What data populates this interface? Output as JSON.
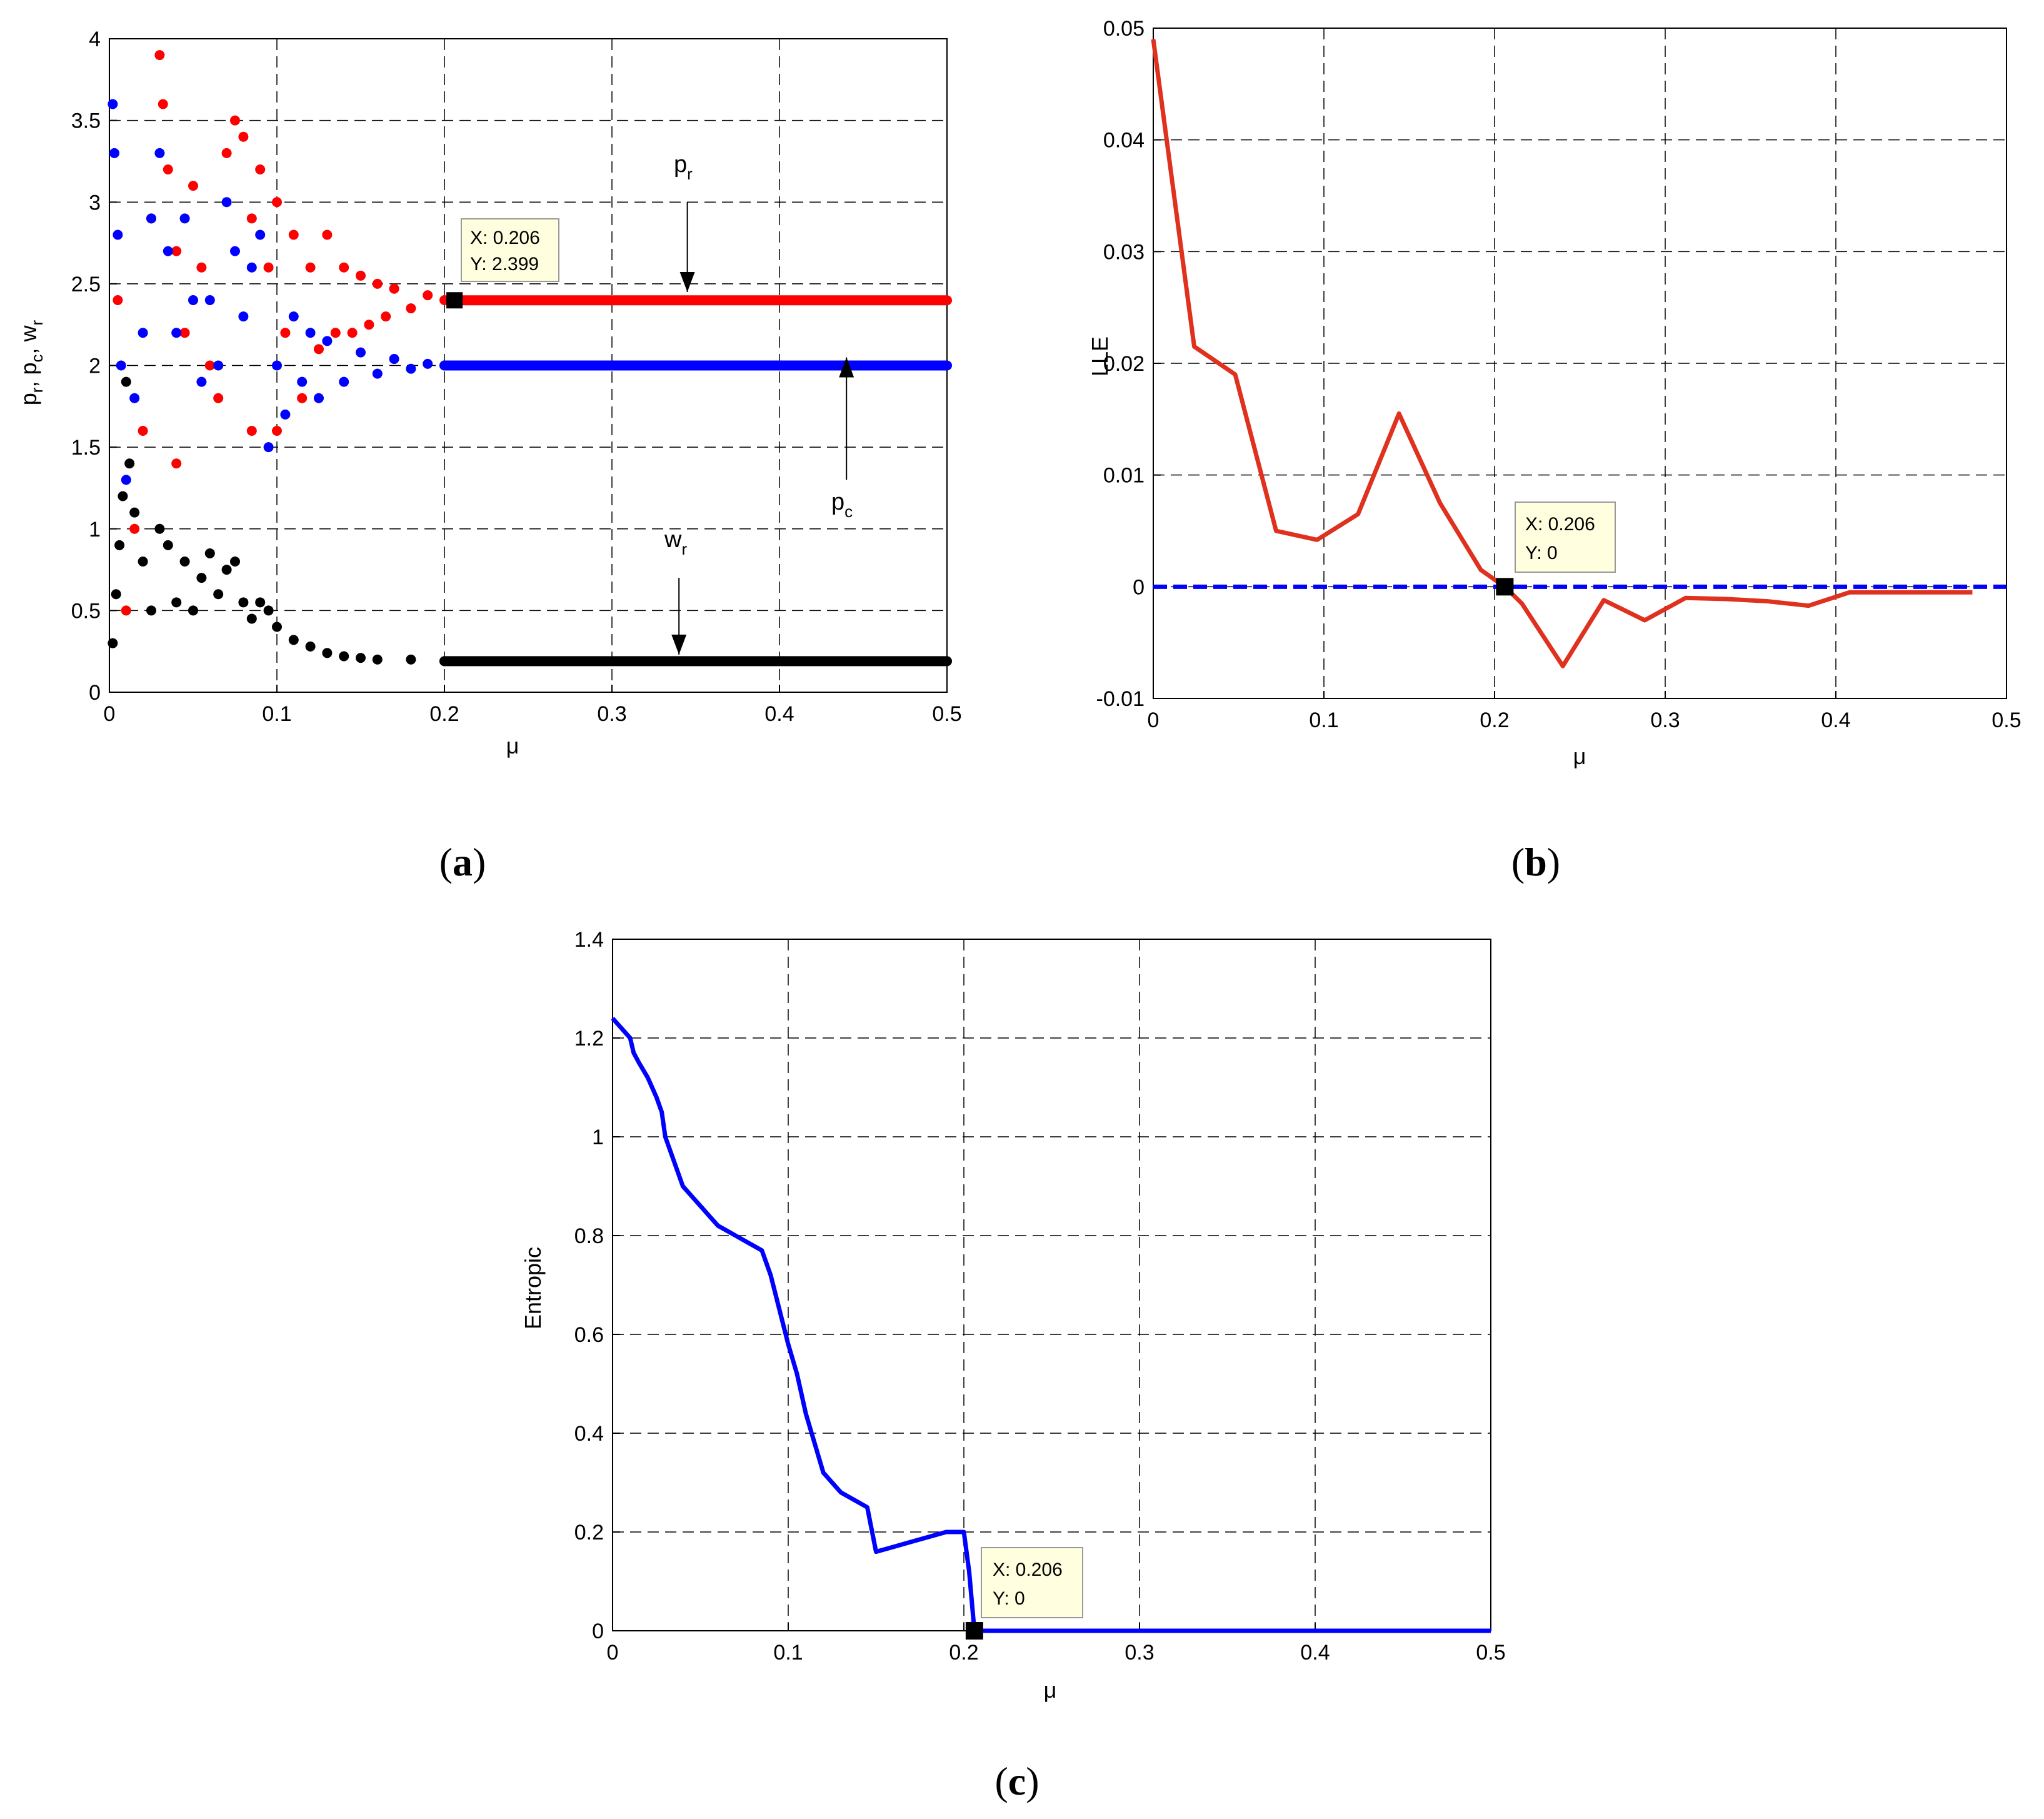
{
  "chart_data": [
    {
      "id": "a",
      "type": "scatter",
      "caption": "(a)",
      "caption_letter": "a",
      "xlabel": "μ",
      "ylabel": "p_r, p_c, w_r",
      "ylabel_parts": {
        "p": "p",
        "r": "r",
        "c": "c",
        "w": "w",
        "sep": ", "
      },
      "xlim": [
        0,
        0.5
      ],
      "ylim": [
        0,
        4
      ],
      "xticks": [
        0,
        0.1,
        0.2,
        0.3,
        0.4,
        0.5
      ],
      "xtick_labels": [
        "0",
        "0.1",
        "0.2",
        "0.3",
        "0.4",
        "0.5"
      ],
      "yticks": [
        0,
        0.5,
        1,
        1.5,
        2,
        2.5,
        3,
        3.5,
        4
      ],
      "ytick_labels": [
        "0",
        "0.5",
        "1",
        "1.5",
        "2",
        "2.5",
        "3",
        "3.5",
        "4"
      ],
      "grid": true,
      "series": [
        {
          "name": "p_r",
          "color": "#ff0000",
          "steady_value": 2.399,
          "points": [
            [
              0.005,
              2.4
            ],
            [
              0.01,
              0.5
            ],
            [
              0.015,
              1.0
            ],
            [
              0.02,
              1.6
            ],
            [
              0.025,
              2.9
            ],
            [
              0.03,
              3.9
            ],
            [
              0.032,
              3.6
            ],
            [
              0.035,
              3.2
            ],
            [
              0.04,
              2.7
            ],
            [
              0.04,
              1.4
            ],
            [
              0.045,
              2.2
            ],
            [
              0.05,
              3.1
            ],
            [
              0.055,
              2.6
            ],
            [
              0.06,
              2.0
            ],
            [
              0.065,
              1.8
            ],
            [
              0.07,
              3.3
            ],
            [
              0.075,
              3.5
            ],
            [
              0.08,
              3.4
            ],
            [
              0.085,
              2.9
            ],
            [
              0.085,
              1.6
            ],
            [
              0.09,
              3.2
            ],
            [
              0.095,
              2.6
            ],
            [
              0.1,
              3.0
            ],
            [
              0.1,
              1.6
            ],
            [
              0.105,
              2.2
            ],
            [
              0.11,
              2.8
            ],
            [
              0.115,
              1.8
            ],
            [
              0.12,
              2.6
            ],
            [
              0.125,
              2.1
            ],
            [
              0.13,
              2.8
            ],
            [
              0.135,
              2.2
            ],
            [
              0.14,
              2.6
            ],
            [
              0.145,
              2.2
            ],
            [
              0.15,
              2.55
            ],
            [
              0.155,
              2.25
            ],
            [
              0.16,
              2.5
            ],
            [
              0.165,
              2.3
            ],
            [
              0.17,
              2.47
            ],
            [
              0.18,
              2.35
            ],
            [
              0.19,
              2.43
            ],
            [
              0.2,
              2.4
            ],
            [
              0.206,
              2.399
            ]
          ]
        },
        {
          "name": "p_c",
          "color": "#0000ff",
          "steady_value": 2.0,
          "points": [
            [
              0.002,
              3.6
            ],
            [
              0.003,
              3.3
            ],
            [
              0.005,
              2.8
            ],
            [
              0.007,
              2.0
            ],
            [
              0.01,
              1.3
            ],
            [
              0.015,
              1.8
            ],
            [
              0.02,
              2.2
            ],
            [
              0.025,
              2.9
            ],
            [
              0.03,
              3.3
            ],
            [
              0.035,
              2.7
            ],
            [
              0.04,
              2.2
            ],
            [
              0.045,
              2.9
            ],
            [
              0.05,
              2.4
            ],
            [
              0.055,
              1.9
            ],
            [
              0.06,
              2.4
            ],
            [
              0.065,
              2.0
            ],
            [
              0.07,
              3.0
            ],
            [
              0.075,
              2.7
            ],
            [
              0.08,
              2.3
            ],
            [
              0.085,
              2.6
            ],
            [
              0.09,
              2.8
            ],
            [
              0.095,
              1.5
            ],
            [
              0.1,
              2.0
            ],
            [
              0.105,
              1.7
            ],
            [
              0.11,
              2.3
            ],
            [
              0.115,
              1.9
            ],
            [
              0.12,
              2.2
            ],
            [
              0.125,
              1.8
            ],
            [
              0.13,
              2.15
            ],
            [
              0.14,
              1.9
            ],
            [
              0.15,
              2.08
            ],
            [
              0.16,
              1.95
            ],
            [
              0.17,
              2.04
            ],
            [
              0.18,
              1.98
            ],
            [
              0.19,
              2.01
            ],
            [
              0.2,
              2.0
            ]
          ]
        },
        {
          "name": "w_r",
          "color": "#000000",
          "steady_value": 0.19,
          "points": [
            [
              0.002,
              0.3
            ],
            [
              0.004,
              0.6
            ],
            [
              0.006,
              0.9
            ],
            [
              0.008,
              1.2
            ],
            [
              0.01,
              1.9
            ],
            [
              0.012,
              1.4
            ],
            [
              0.015,
              1.1
            ],
            [
              0.02,
              0.8
            ],
            [
              0.025,
              0.5
            ],
            [
              0.03,
              1.0
            ],
            [
              0.035,
              0.9
            ],
            [
              0.04,
              0.55
            ],
            [
              0.045,
              0.8
            ],
            [
              0.05,
              0.5
            ],
            [
              0.055,
              0.7
            ],
            [
              0.06,
              0.85
            ],
            [
              0.065,
              0.6
            ],
            [
              0.07,
              0.75
            ],
            [
              0.075,
              0.8
            ],
            [
              0.08,
              0.55
            ],
            [
              0.085,
              0.45
            ],
            [
              0.09,
              0.55
            ],
            [
              0.095,
              0.5
            ],
            [
              0.1,
              0.4
            ],
            [
              0.11,
              0.32
            ],
            [
              0.12,
              0.28
            ],
            [
              0.13,
              0.24
            ],
            [
              0.14,
              0.22
            ],
            [
              0.15,
              0.21
            ],
            [
              0.16,
              0.2
            ],
            [
              0.18,
              0.2
            ],
            [
              0.2,
              0.19
            ]
          ]
        }
      ],
      "annotations": [
        {
          "label_main": "p",
          "label_sub": "r",
          "arrow_x": 0.345,
          "arrow_from_y": 3.0,
          "arrow_to_y": 2.45
        },
        {
          "label_main": "p",
          "label_sub": "c",
          "arrow_x": 0.44,
          "arrow_from_y": 1.3,
          "arrow_to_y": 2.05
        },
        {
          "label_main": "w",
          "label_sub": "r",
          "arrow_x": 0.34,
          "arrow_from_y": 0.7,
          "arrow_to_y": 0.23
        }
      ],
      "datatip": {
        "x": 0.206,
        "y": 2.399,
        "line1": "X: 0.206",
        "line2": "Y: 2.399"
      }
    },
    {
      "id": "b",
      "type": "line",
      "caption": "(b)",
      "caption_letter": "b",
      "xlabel": "μ",
      "ylabel": "LLE",
      "xlim": [
        0,
        0.5
      ],
      "ylim": [
        -0.01,
        0.05
      ],
      "xticks": [
        0,
        0.1,
        0.2,
        0.3,
        0.4,
        0.5
      ],
      "xtick_labels": [
        "0",
        "0.1",
        "0.2",
        "0.3",
        "0.4",
        "0.5"
      ],
      "yticks": [
        -0.01,
        0,
        0.01,
        0.02,
        0.03,
        0.04,
        0.05
      ],
      "ytick_labels": [
        "-0.01",
        "0",
        "0.01",
        "0.02",
        "0.03",
        "0.04",
        "0.05"
      ],
      "grid": true,
      "series": [
        {
          "name": "LLE",
          "color": "#e0301e",
          "x": [
            0,
            0.024,
            0.048,
            0.072,
            0.096,
            0.12,
            0.144,
            0.168,
            0.192,
            0.206,
            0.216,
            0.24,
            0.264,
            0.288,
            0.312,
            0.336,
            0.36,
            0.384,
            0.408,
            0.432,
            0.456,
            0.48
          ],
          "y": [
            0.049,
            0.0215,
            0.019,
            0.005,
            0.0042,
            0.0065,
            0.0155,
            0.0075,
            0.0015,
            0,
            -0.0015,
            -0.0071,
            -0.0012,
            -0.003,
            -0.001,
            -0.0011,
            -0.0013,
            -0.0017,
            -0.0005,
            -0.0005,
            -0.0005,
            -0.0005
          ]
        },
        {
          "name": "zero",
          "color": "#0000ff",
          "dashed": true,
          "x": [
            0,
            0.5
          ],
          "y": [
            0,
            0
          ]
        }
      ],
      "datatip": {
        "x": 0.206,
        "y": 0,
        "line1": "X: 0.206",
        "line2": "Y: 0"
      }
    },
    {
      "id": "c",
      "type": "line",
      "caption": "(c)",
      "caption_letter": "c",
      "xlabel": "μ",
      "ylabel": "Entropic",
      "xlim": [
        0,
        0.5
      ],
      "ylim": [
        0,
        1.4
      ],
      "xticks": [
        0,
        0.1,
        0.2,
        0.3,
        0.4,
        0.5
      ],
      "xtick_labels": [
        "0",
        "0.1",
        "0.2",
        "0.3",
        "0.4",
        "0.5"
      ],
      "yticks": [
        0,
        0.2,
        0.4,
        0.6,
        0.8,
        1,
        1.2,
        1.4
      ],
      "ytick_labels": [
        "0",
        "0.2",
        "0.4",
        "0.6",
        "0.8",
        "1",
        "1.2",
        "1.4"
      ],
      "grid": true,
      "series": [
        {
          "name": "Entropic",
          "color": "#0000ff",
          "x": [
            0,
            0.005,
            0.01,
            0.012,
            0.015,
            0.02,
            0.025,
            0.028,
            0.03,
            0.035,
            0.038,
            0.04,
            0.045,
            0.05,
            0.055,
            0.06,
            0.065,
            0.07,
            0.075,
            0.08,
            0.085,
            0.09,
            0.095,
            0.1,
            0.105,
            0.11,
            0.115,
            0.12,
            0.125,
            0.13,
            0.135,
            0.14,
            0.145,
            0.15,
            0.16,
            0.17,
            0.18,
            0.19,
            0.2,
            0.203,
            0.206,
            0.25,
            0.3,
            0.4,
            0.5
          ],
          "y": [
            1.24,
            1.22,
            1.2,
            1.17,
            1.15,
            1.12,
            1.08,
            1.05,
            1.0,
            0.95,
            0.92,
            0.9,
            0.88,
            0.86,
            0.84,
            0.82,
            0.81,
            0.8,
            0.79,
            0.78,
            0.77,
            0.72,
            0.65,
            0.58,
            0.52,
            0.44,
            0.38,
            0.32,
            0.3,
            0.28,
            0.27,
            0.26,
            0.25,
            0.16,
            0.17,
            0.18,
            0.19,
            0.2,
            0.2,
            0.12,
            0,
            0,
            0,
            0,
            0
          ]
        }
      ],
      "datatip": {
        "x": 0.206,
        "y": 0,
        "line1": "X: 0.206",
        "line2": "Y: 0"
      }
    }
  ],
  "colors": {
    "tip_bg": "#ffffe0",
    "tip_border": "#999999",
    "grid": "#000000"
  }
}
